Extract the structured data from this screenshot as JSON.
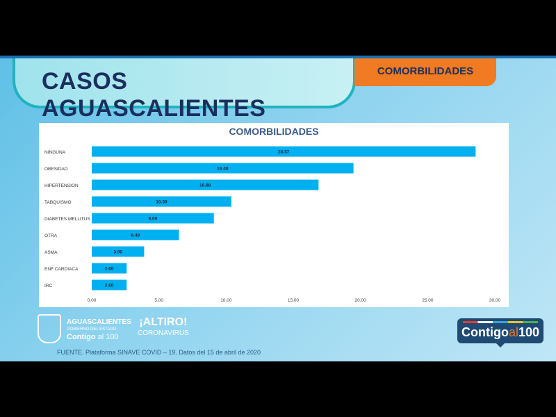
{
  "header": {
    "title": "CASOS AGUASCALIENTES",
    "tab": "COMORBILIDADES"
  },
  "chart_data": {
    "type": "bar",
    "orientation": "horizontal",
    "title": "COMORBILIDADES",
    "categories": [
      "NINGUNA",
      "OBESIDAD",
      "HIPERTENSION",
      "TABQUISMO",
      "DIABETES MELLITUS",
      "OTRA",
      "ASMA",
      "ENF CARDIACA",
      "IRC"
    ],
    "values": [
      28.57,
      19.48,
      16.88,
      10.39,
      9.09,
      6.49,
      3.9,
      2.6,
      2.6
    ],
    "value_labels": [
      "28.57",
      "19.48",
      "16.88",
      "10.39",
      "9.09",
      "6.49",
      "3.90",
      "2.60",
      "2.60"
    ],
    "xlim": [
      0,
      30
    ],
    "ticks": [
      "0.00",
      "5.00",
      "10.00",
      "15.00",
      "20.00",
      "25.00",
      "30.00"
    ],
    "bar_color": "#00b0f0",
    "grid": false
  },
  "footer": {
    "source": "FUENTE. Plataforma SINAVE COVID – 19. Datos del 15 de abril de 2020"
  },
  "logos": {
    "gov_name": "AGUASCALIENTES",
    "gov_sub": "GOBIERNO DEL ESTADO",
    "gov_slogan_a": "Contigo ",
    "gov_slogan_b": "al 100",
    "altiro": "¡ALTIRO!",
    "altiro_sub": "CORONAVIRUS",
    "badge_a": "Contigo",
    "badge_b": "al",
    "badge_c": "100"
  }
}
